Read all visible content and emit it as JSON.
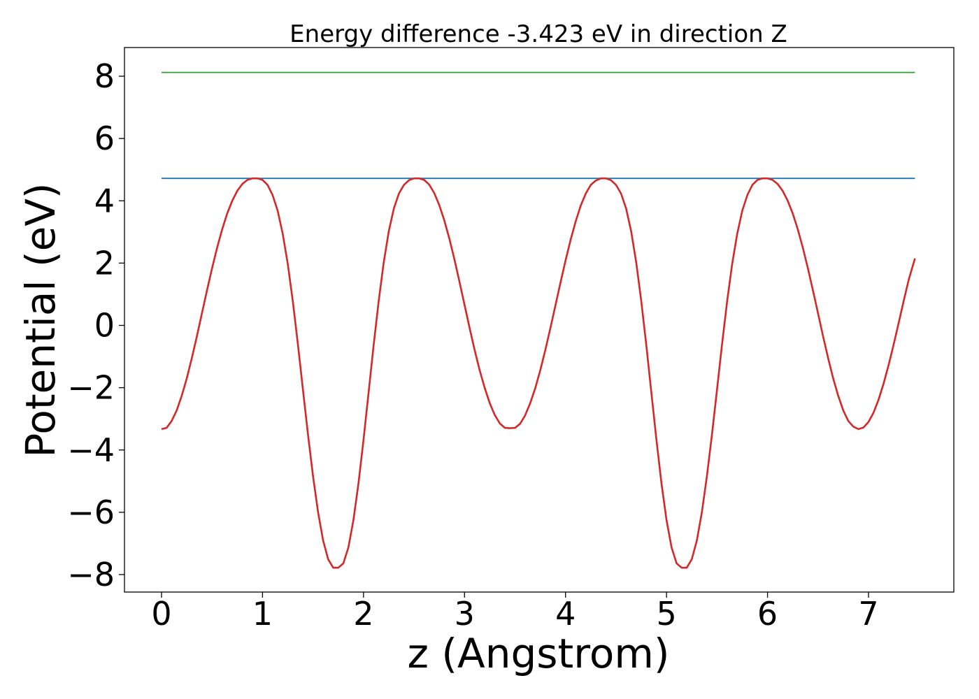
{
  "chart_data": {
    "type": "line",
    "title": "Energy difference -3.423 eV in direction Z",
    "xlabel": "z (Angstrom)",
    "ylabel": "Potential (eV)",
    "xlim": [
      -0.37,
      7.5
    ],
    "ylim": [
      -8.6,
      8.9
    ],
    "xticks": [
      0,
      1,
      2,
      3,
      4,
      5,
      6,
      7
    ],
    "xtick_labels": [
      "0",
      "1",
      "2",
      "3",
      "4",
      "5",
      "6",
      "7"
    ],
    "yticks": [
      8,
      6,
      4,
      2,
      0,
      -2,
      -4,
      -6,
      -8
    ],
    "ytick_labels": [
      "8",
      "6",
      "4",
      "2",
      "0",
      "−2",
      "−4",
      "−6",
      "−8"
    ],
    "grid": false,
    "legend": "none",
    "series": [
      {
        "color": "#2ca02c",
        "x": [
          0,
          7.46
        ],
        "y": [
          8.12,
          8.12
        ]
      },
      {
        "color": "#1f77b4",
        "x": [
          0,
          7.46
        ],
        "y": [
          4.72,
          4.72
        ]
      },
      {
        "color": "#d62728",
        "x": [
          0,
          0.05,
          0.1,
          0.15,
          0.2,
          0.25,
          0.3,
          0.35,
          0.4,
          0.45,
          0.5,
          0.55,
          0.6,
          0.65,
          0.7,
          0.75,
          0.8,
          0.85,
          0.9,
          0.95,
          1.0,
          1.05,
          1.1,
          1.15,
          1.2,
          1.25,
          1.3,
          1.35,
          1.4,
          1.45,
          1.5,
          1.55,
          1.6,
          1.65,
          1.7,
          1.75,
          1.8,
          1.85,
          1.9,
          1.95,
          2.0,
          2.05,
          2.1,
          2.15,
          2.2,
          2.25,
          2.3,
          2.35,
          2.4,
          2.45,
          2.5,
          2.55,
          2.6,
          2.65,
          2.7,
          2.75,
          2.8,
          2.85,
          2.9,
          2.95,
          3.0,
          3.05,
          3.1,
          3.15,
          3.2,
          3.25,
          3.3,
          3.35,
          3.4,
          3.45,
          3.5,
          3.55,
          3.6,
          3.65,
          3.7,
          3.75,
          3.8,
          3.85,
          3.9,
          3.95,
          4.0,
          4.05,
          4.1,
          4.15,
          4.2,
          4.25,
          4.3,
          4.35,
          4.4,
          4.45,
          4.5,
          4.55,
          4.6,
          4.65,
          4.7,
          4.75,
          4.8,
          4.85,
          4.9,
          4.95,
          5.0,
          5.05,
          5.1,
          5.15,
          5.2,
          5.25,
          5.3,
          5.35,
          5.4,
          5.45,
          5.5,
          5.55,
          5.6,
          5.65,
          5.7,
          5.75,
          5.8,
          5.85,
          5.9,
          5.95,
          6.0,
          6.05,
          6.1,
          6.15,
          6.2,
          6.25,
          6.3,
          6.35,
          6.4,
          6.45,
          6.5,
          6.55,
          6.6,
          6.65,
          6.7,
          6.75,
          6.8,
          6.85,
          6.9,
          6.95,
          7.0,
          7.05,
          7.1,
          7.15,
          7.2,
          7.25,
          7.3,
          7.35,
          7.4,
          7.46
        ],
        "y": [
          -3.33,
          -3.29,
          -3.07,
          -2.73,
          -2.26,
          -1.7,
          -1.05,
          -0.35,
          0.39,
          1.12,
          1.83,
          2.49,
          3.08,
          3.59,
          4.0,
          4.32,
          4.54,
          4.67,
          4.72,
          4.72,
          4.67,
          4.51,
          4.18,
          3.68,
          2.94,
          1.97,
          0.77,
          -0.6,
          -2.06,
          -3.5,
          -4.84,
          -6.0,
          -6.91,
          -7.51,
          -7.78,
          -7.78,
          -7.64,
          -7.13,
          -6.25,
          -5.07,
          -3.67,
          -2.16,
          -0.64,
          0.78,
          2.02,
          3.02,
          3.75,
          4.23,
          4.51,
          4.66,
          4.72,
          4.72,
          4.67,
          4.52,
          4.25,
          3.86,
          3.37,
          2.78,
          2.12,
          1.4,
          0.66,
          -0.08,
          -0.79,
          -1.44,
          -2.01,
          -2.5,
          -2.88,
          -3.15,
          -3.29,
          -3.3,
          -3.29,
          -3.16,
          -2.89,
          -2.5,
          -2.02,
          -1.44,
          -0.79,
          -0.09,
          0.64,
          1.37,
          2.08,
          2.74,
          3.33,
          3.84,
          4.23,
          4.51,
          4.65,
          4.72,
          4.72,
          4.66,
          4.51,
          4.23,
          3.75,
          3.02,
          2.02,
          0.78,
          -0.64,
          -2.16,
          -3.67,
          -5.07,
          -6.25,
          -7.13,
          -7.64,
          -7.78,
          -7.78,
          -7.51,
          -6.91,
          -6.0,
          -4.84,
          -3.5,
          -2.06,
          -0.6,
          0.77,
          1.97,
          2.94,
          3.68,
          4.18,
          4.51,
          4.67,
          4.72,
          4.72,
          4.67,
          4.54,
          4.32,
          4.0,
          3.59,
          3.08,
          2.49,
          1.83,
          1.12,
          0.39,
          -0.35,
          -1.05,
          -1.7,
          -2.26,
          -2.73,
          -3.07,
          -3.25,
          -3.33,
          -3.28,
          -3.1,
          -2.8,
          -2.38,
          -1.86,
          -1.26,
          -0.6,
          0.1,
          0.81,
          1.49,
          2.15
        ]
      }
    ]
  }
}
